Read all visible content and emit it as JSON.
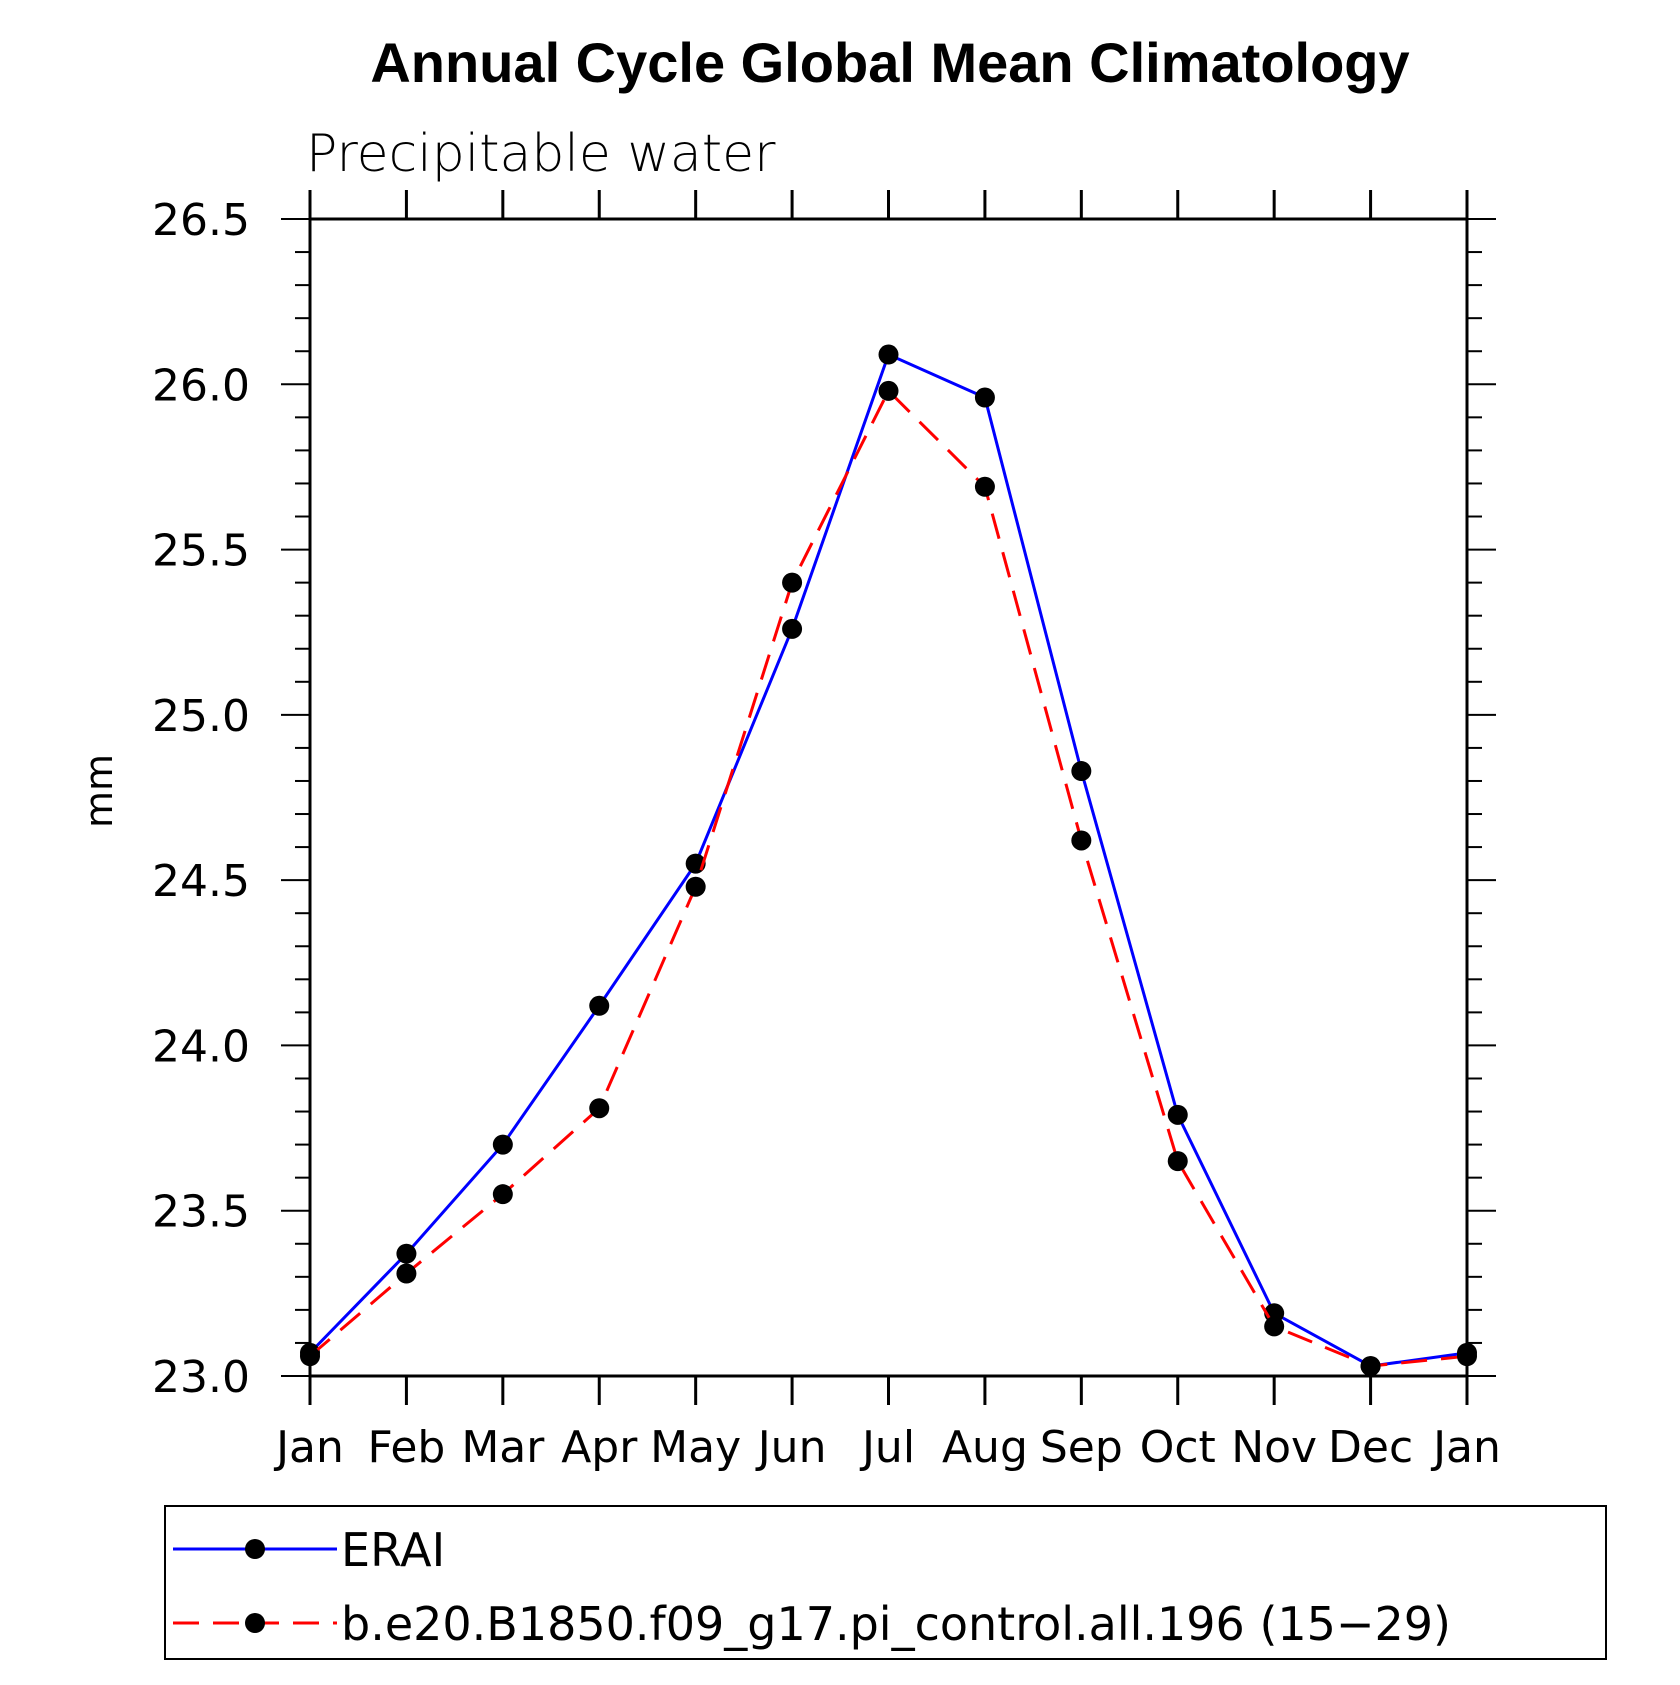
{
  "chart_data": {
    "type": "line",
    "title": "Annual Cycle Global Mean Climatology",
    "subtitle": "Precipitable water",
    "xlabel": "",
    "ylabel": "mm",
    "categories": [
      "Jan",
      "Feb",
      "Mar",
      "Apr",
      "May",
      "Jun",
      "Jul",
      "Aug",
      "Sep",
      "Oct",
      "Nov",
      "Dec",
      "Jan"
    ],
    "ylim": [
      23.0,
      26.5
    ],
    "yticks": [
      "23.0",
      "23.5",
      "24.0",
      "24.5",
      "25.0",
      "25.5",
      "26.0",
      "26.5"
    ],
    "series": [
      {
        "name": "ERAI",
        "color": "#0000ff",
        "style": "solid",
        "values": [
          23.07,
          23.37,
          23.7,
          24.12,
          24.55,
          25.26,
          26.09,
          25.96,
          24.83,
          23.79,
          23.19,
          23.03,
          23.07
        ]
      },
      {
        "name": "b.e20.B1850.f09_g17.pi_control.all.196 (15−29)",
        "color": "#ff0000",
        "style": "dashed",
        "values": [
          23.06,
          23.31,
          23.55,
          23.81,
          24.48,
          25.4,
          25.98,
          25.69,
          24.62,
          23.65,
          23.15,
          23.03,
          23.06
        ]
      }
    ],
    "legend": {
      "placement": "bottom"
    },
    "grid": false
  }
}
